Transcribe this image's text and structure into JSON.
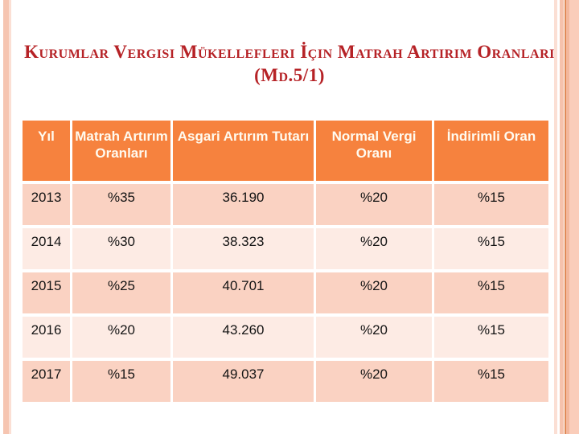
{
  "slide": {
    "title_line1": "Kurumlar Vergisi Mükellefleri İçin Matrah Artırım Oranları",
    "title_line2": "(Md.5/1)"
  },
  "table": {
    "headers": [
      "Yıl",
      "Matrah Artırım Oranları",
      "Asgari Artırım Tutarı",
      "Normal Vergi Oranı",
      "İndirimli Oran"
    ],
    "rows": [
      [
        "2013",
        "%35",
        "36.190",
        "%20",
        "%15"
      ],
      [
        "2014",
        "%30",
        "38.323",
        "%20",
        "%15"
      ],
      [
        "2015",
        "%25",
        "40.701",
        "%20",
        "%15"
      ],
      [
        "2016",
        "%20",
        "43.260",
        "%20",
        "%15"
      ],
      [
        "2017",
        "%15",
        "49.037",
        "%20",
        "%15"
      ]
    ]
  },
  "colors": {
    "header_bg": "#F6823E",
    "row_odd_bg": "#FAD2C2",
    "row_even_bg": "#FDEBE4",
    "title_text": "#B62226",
    "border_stripe": "#F6C2AC",
    "border_stripe_dark": "#E08B58"
  }
}
